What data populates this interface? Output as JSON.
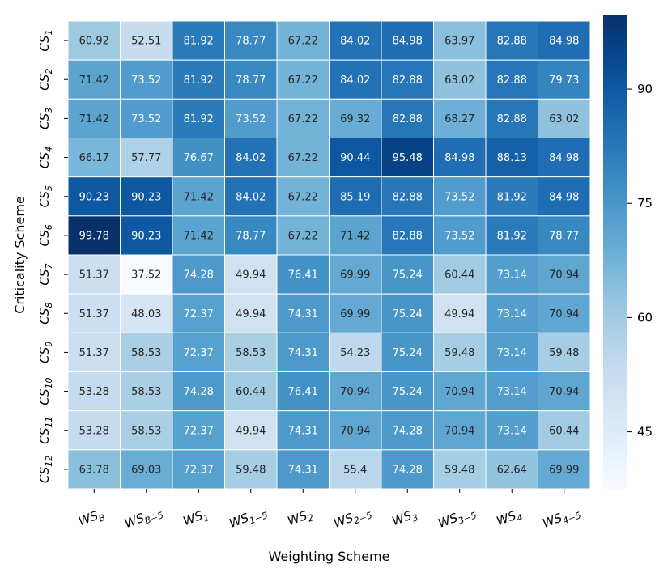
{
  "chart_data": {
    "type": "heatmap",
    "title": "",
    "xlabel": "Weighting Scheme",
    "ylabel": "Criticality Scheme",
    "x_tick_labels": [
      {
        "base": "WS",
        "sub": "B"
      },
      {
        "base": "WS",
        "sub": "B−5"
      },
      {
        "base": "WS",
        "sub": "1"
      },
      {
        "base": "WS",
        "sub": "1−5"
      },
      {
        "base": "WS",
        "sub": "2"
      },
      {
        "base": "WS",
        "sub": "2−5"
      },
      {
        "base": "WS",
        "sub": "3"
      },
      {
        "base": "WS",
        "sub": "3−5"
      },
      {
        "base": "WS",
        "sub": "4"
      },
      {
        "base": "WS",
        "sub": "4−5"
      }
    ],
    "y_tick_labels": [
      {
        "base": "CS",
        "sub": "1"
      },
      {
        "base": "CS",
        "sub": "2"
      },
      {
        "base": "CS",
        "sub": "3"
      },
      {
        "base": "CS",
        "sub": "4"
      },
      {
        "base": "CS",
        "sub": "5"
      },
      {
        "base": "CS",
        "sub": "6"
      },
      {
        "base": "CS",
        "sub": "7"
      },
      {
        "base": "CS",
        "sub": "8"
      },
      {
        "base": "CS",
        "sub": "9"
      },
      {
        "base": "CS",
        "sub": "10"
      },
      {
        "base": "CS",
        "sub": "11"
      },
      {
        "base": "CS",
        "sub": "12"
      }
    ],
    "values": [
      [
        60.92,
        52.51,
        81.92,
        78.77,
        67.22,
        84.02,
        84.98,
        63.97,
        82.88,
        84.98
      ],
      [
        71.42,
        73.52,
        81.92,
        78.77,
        67.22,
        84.02,
        82.88,
        63.02,
        82.88,
        79.73
      ],
      [
        71.42,
        73.52,
        81.92,
        73.52,
        67.22,
        69.32,
        82.88,
        68.27,
        82.88,
        63.02
      ],
      [
        66.17,
        57.77,
        76.67,
        84.02,
        67.22,
        90.44,
        95.48,
        84.98,
        88.13,
        84.98
      ],
      [
        90.23,
        90.23,
        71.42,
        84.02,
        67.22,
        85.19,
        82.88,
        73.52,
        81.92,
        84.98
      ],
      [
        99.78,
        90.23,
        71.42,
        78.77,
        67.22,
        71.42,
        82.88,
        73.52,
        81.92,
        78.77
      ],
      [
        51.37,
        37.52,
        74.28,
        49.94,
        76.41,
        69.99,
        75.24,
        60.44,
        73.14,
        70.94
      ],
      [
        51.37,
        48.03,
        72.37,
        49.94,
        74.31,
        69.99,
        75.24,
        49.94,
        73.14,
        70.94
      ],
      [
        51.37,
        58.53,
        72.37,
        58.53,
        74.31,
        54.23,
        75.24,
        59.48,
        73.14,
        59.48
      ],
      [
        53.28,
        58.53,
        74.28,
        60.44,
        76.41,
        70.94,
        75.24,
        70.94,
        73.14,
        70.94
      ],
      [
        53.28,
        58.53,
        72.37,
        49.94,
        74.31,
        70.94,
        74.28,
        70.94,
        73.14,
        60.44
      ],
      [
        63.78,
        69.03,
        72.37,
        59.48,
        74.31,
        55.4,
        74.28,
        59.48,
        62.64,
        69.99
      ]
    ],
    "color_range": [
      37.52,
      99.78
    ],
    "colormap": "Blues",
    "colorbar_ticks": [
      45,
      60,
      75,
      90
    ],
    "grid": true,
    "grid_color": "#ffffff",
    "annot_dark_color": "#262626",
    "annot_light_color": "#ffffff"
  }
}
